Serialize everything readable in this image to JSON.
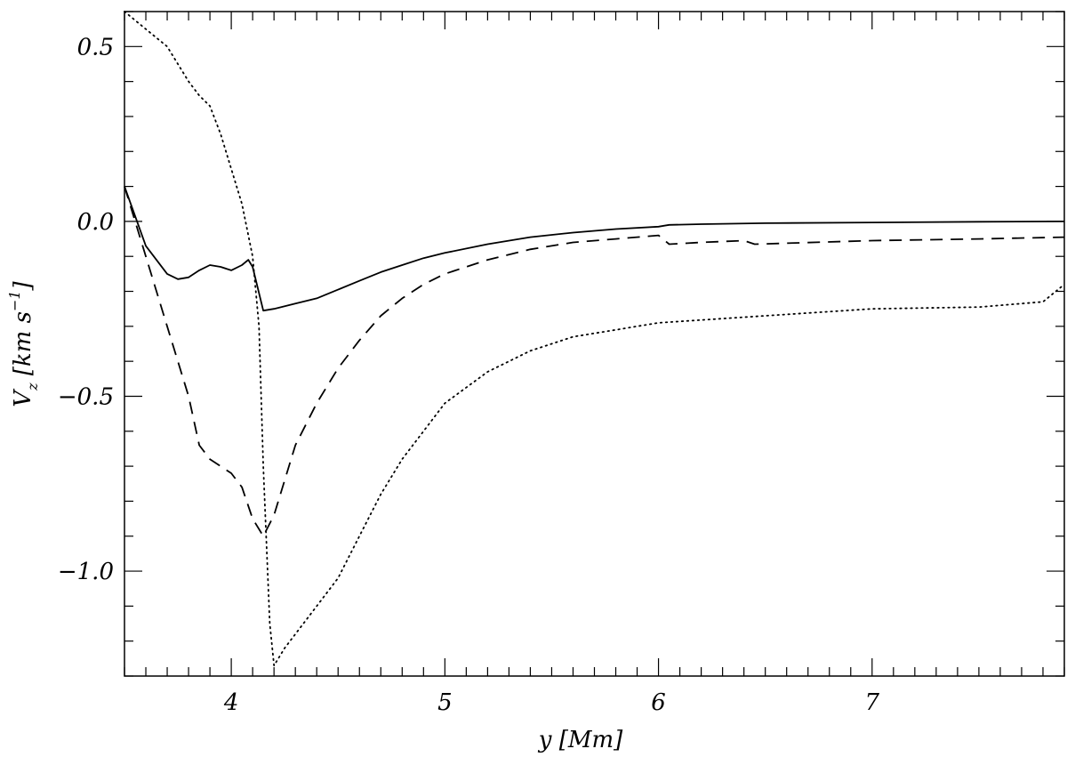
{
  "chart_data": {
    "type": "line",
    "xlabel": "y [Mm]",
    "ylabel": "V_z [km s^-1]",
    "xlim": [
      3.5,
      7.9
    ],
    "ylim": [
      -1.3,
      0.6
    ],
    "xticks": [
      4,
      5,
      6,
      7
    ],
    "xtick_labels": [
      "4",
      "5",
      "6",
      "7"
    ],
    "yticks": [
      0.5,
      0.0,
      -0.5,
      -1.0
    ],
    "ytick_labels": [
      "0.5",
      "0.0",
      "−0.5",
      "−1.0"
    ],
    "x_minor_step": 0.1,
    "y_minor_step": 0.1,
    "grid": false,
    "legend": "none",
    "series": [
      {
        "style": "solid",
        "x": [
          3.5,
          3.6,
          3.7,
          3.75,
          3.8,
          3.85,
          3.9,
          3.95,
          4.0,
          4.05,
          4.08,
          4.1,
          4.15,
          4.2,
          4.3,
          4.4,
          4.5,
          4.6,
          4.7,
          4.8,
          4.9,
          5.0,
          5.2,
          5.4,
          5.6,
          5.8,
          6.0,
          6.05,
          6.2,
          6.5,
          7.0,
          7.5,
          7.9
        ],
        "y": [
          0.1,
          -0.07,
          -0.15,
          -0.165,
          -0.16,
          -0.14,
          -0.125,
          -0.13,
          -0.14,
          -0.125,
          -0.11,
          -0.13,
          -0.255,
          -0.25,
          -0.235,
          -0.22,
          -0.195,
          -0.17,
          -0.145,
          -0.125,
          -0.105,
          -0.09,
          -0.065,
          -0.045,
          -0.032,
          -0.022,
          -0.015,
          -0.01,
          -0.008,
          -0.005,
          -0.003,
          -0.001,
          0.0
        ]
      },
      {
        "style": "dashed",
        "x": [
          3.5,
          3.6,
          3.7,
          3.8,
          3.85,
          3.9,
          3.95,
          4.0,
          4.05,
          4.1,
          4.15,
          4.2,
          4.25,
          4.3,
          4.4,
          4.5,
          4.6,
          4.7,
          4.8,
          4.9,
          5.0,
          5.2,
          5.4,
          5.6,
          5.8,
          6.0,
          6.05,
          6.2,
          6.4,
          6.45,
          7.0,
          7.5,
          7.9
        ],
        "y": [
          0.1,
          -0.1,
          -0.3,
          -0.5,
          -0.64,
          -0.68,
          -0.7,
          -0.72,
          -0.76,
          -0.85,
          -0.9,
          -0.84,
          -0.74,
          -0.64,
          -0.52,
          -0.42,
          -0.34,
          -0.27,
          -0.22,
          -0.18,
          -0.15,
          -0.11,
          -0.08,
          -0.06,
          -0.05,
          -0.04,
          -0.065,
          -0.06,
          -0.055,
          -0.065,
          -0.055,
          -0.05,
          -0.045
        ]
      },
      {
        "style": "dotted",
        "x": [
          3.5,
          3.6,
          3.7,
          3.8,
          3.85,
          3.9,
          3.95,
          4.0,
          4.05,
          4.1,
          4.13,
          4.15,
          4.18,
          4.2,
          4.22,
          4.25,
          4.3,
          4.4,
          4.5,
          4.6,
          4.7,
          4.8,
          4.9,
          5.0,
          5.2,
          5.4,
          5.6,
          5.8,
          6.0,
          6.5,
          7.0,
          7.5,
          7.8,
          7.9
        ],
        "y": [
          0.6,
          0.55,
          0.5,
          0.4,
          0.36,
          0.33,
          0.25,
          0.15,
          0.05,
          -0.1,
          -0.3,
          -0.7,
          -1.15,
          -1.27,
          -1.25,
          -1.22,
          -1.18,
          -1.1,
          -1.02,
          -0.9,
          -0.78,
          -0.68,
          -0.6,
          -0.52,
          -0.43,
          -0.37,
          -0.33,
          -0.31,
          -0.29,
          -0.27,
          -0.25,
          -0.245,
          -0.23,
          -0.18
        ]
      }
    ]
  }
}
